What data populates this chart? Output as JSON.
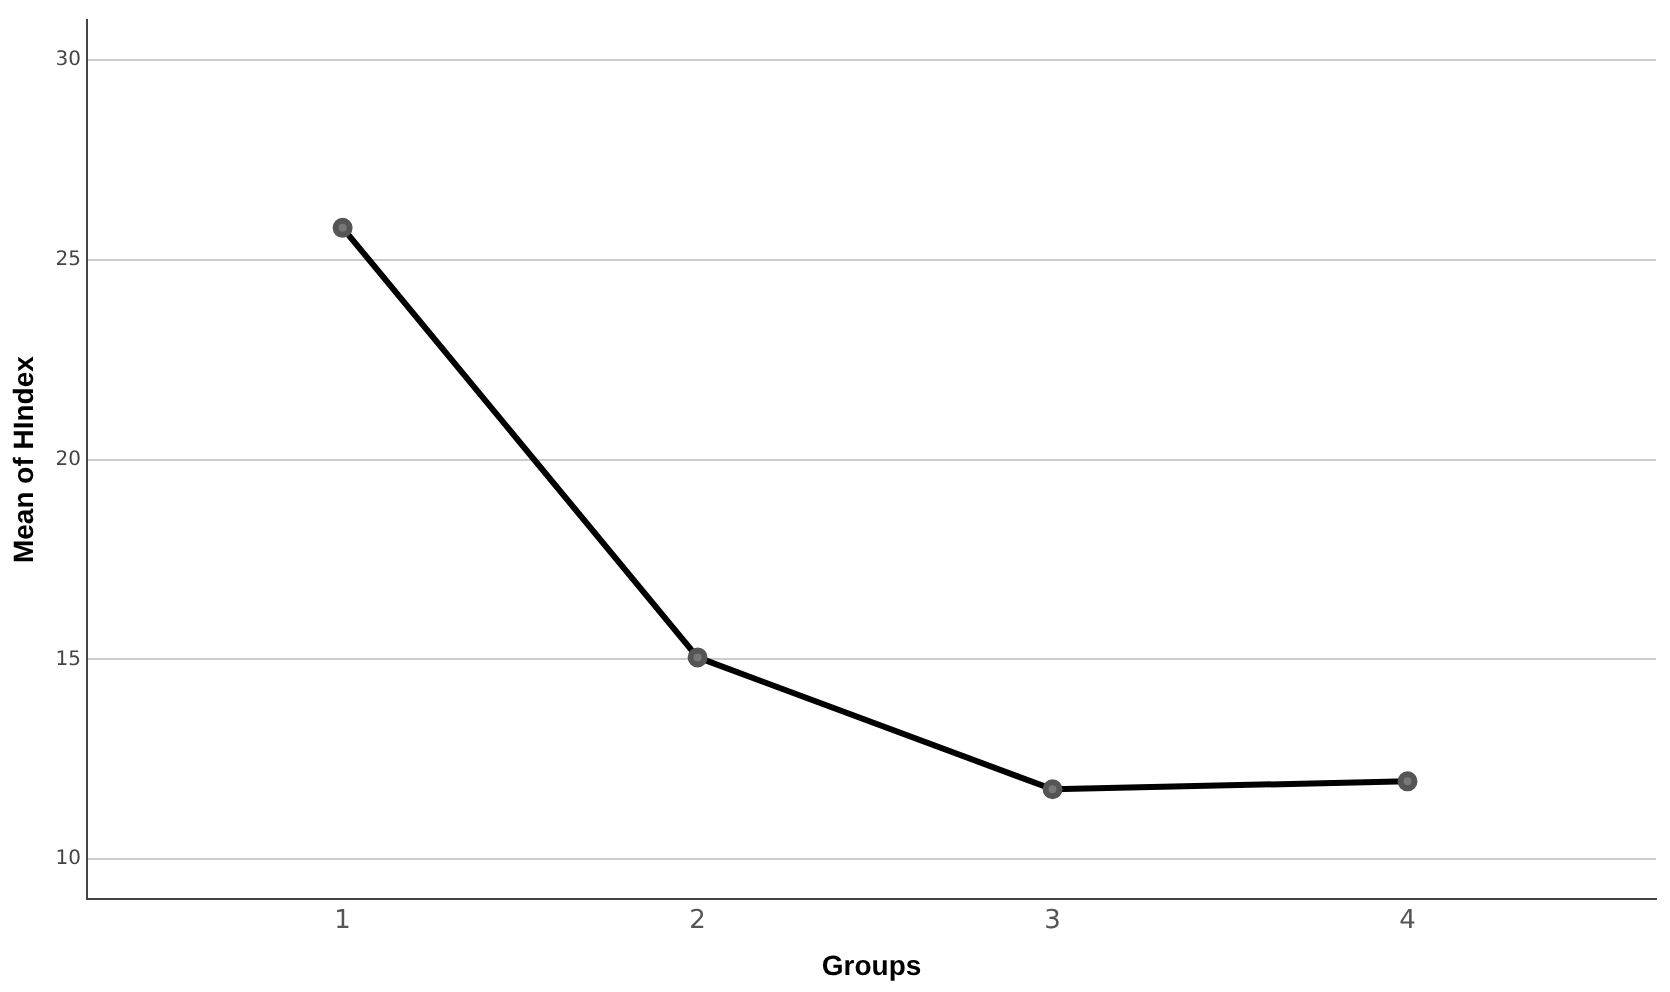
{
  "chart_data": {
    "type": "line",
    "xlabel": "Groups",
    "ylabel": "Mean of HIndex",
    "x": [
      1,
      2,
      3,
      4
    ],
    "series": [
      {
        "color": "#000000",
        "values": [
          25.8,
          15.05,
          11.75,
          11.95
        ]
      }
    ],
    "xlim": [
      0.28,
      4.7
    ],
    "xticks": [
      1,
      2,
      3,
      4
    ],
    "ylim": [
      9,
      31
    ],
    "yticks": [
      10,
      15,
      20,
      25,
      30
    ],
    "grid": "y",
    "legend": false,
    "marker": "circle",
    "line_style": "solid"
  }
}
